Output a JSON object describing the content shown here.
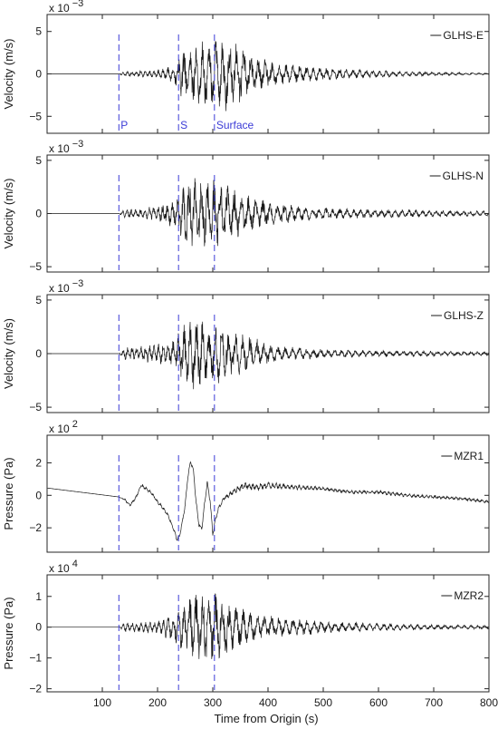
{
  "figure": {
    "xlabel": "Time from Origin (s)"
  },
  "chart_data": [
    {
      "type": "line",
      "ylabel": "Velocity (m/s)",
      "exponent_base": "x 10",
      "exponent_power": "−3",
      "legend": "GLHS-E",
      "xlim": [
        0,
        800
      ],
      "ylim": [
        -7,
        7
      ],
      "xticks": [
        100,
        200,
        300,
        400,
        500,
        600,
        700,
        800
      ],
      "yticks": [
        -5,
        0,
        5
      ],
      "phase_markers": [
        {
          "label": "P",
          "time": 130
        },
        {
          "label": "S",
          "time": 238
        },
        {
          "label": "Surface",
          "time": 303
        }
      ],
      "signal": {
        "noise_start": 0,
        "envelope": [
          [
            0,
            0
          ],
          [
            130,
            0
          ],
          [
            140,
            0.3
          ],
          [
            200,
            0.5
          ],
          [
            230,
            1.0
          ],
          [
            240,
            2.6
          ],
          [
            260,
            3.7
          ],
          [
            290,
            4.2
          ],
          [
            330,
            4.5
          ],
          [
            350,
            3.6
          ],
          [
            380,
            2.0
          ],
          [
            420,
            1.3
          ],
          [
            480,
            0.9
          ],
          [
            560,
            0.55
          ],
          [
            650,
            0.3
          ],
          [
            800,
            0.1
          ]
        ],
        "period": [
          [
            0,
            8
          ],
          [
            200,
            8
          ],
          [
            260,
            11
          ],
          [
            350,
            13
          ],
          [
            500,
            12
          ],
          [
            800,
            12
          ]
        ]
      }
    },
    {
      "type": "line",
      "ylabel": "Velocity (m/s)",
      "exponent_base": "x 10",
      "exponent_power": "−3",
      "legend": "GLHS-N",
      "xlim": [
        0,
        800
      ],
      "ylim": [
        -5.5,
        5.5
      ],
      "xticks": [
        100,
        200,
        300,
        400,
        500,
        600,
        700,
        800
      ],
      "yticks": [
        -5,
        0,
        5
      ],
      "phase_markers": [
        {
          "label": "",
          "time": 130
        },
        {
          "label": "",
          "time": 238
        },
        {
          "label": "",
          "time": 303
        }
      ],
      "signal": {
        "noise_start": 0,
        "envelope": [
          [
            0,
            0
          ],
          [
            130,
            0
          ],
          [
            140,
            0.4
          ],
          [
            200,
            0.7
          ],
          [
            230,
            1.4
          ],
          [
            250,
            2.8
          ],
          [
            270,
            3.8
          ],
          [
            300,
            3.4
          ],
          [
            330,
            2.6
          ],
          [
            360,
            1.9
          ],
          [
            400,
            1.2
          ],
          [
            460,
            0.7
          ],
          [
            560,
            0.45
          ],
          [
            800,
            0.25
          ]
        ],
        "period": [
          [
            0,
            8
          ],
          [
            200,
            8
          ],
          [
            260,
            11
          ],
          [
            350,
            13
          ],
          [
            800,
            12
          ]
        ]
      }
    },
    {
      "type": "line",
      "ylabel": "Velocity (m/s)",
      "exponent_base": "x 10",
      "exponent_power": "−3",
      "legend": "GLHS-Z",
      "xlim": [
        0,
        800
      ],
      "ylim": [
        -5.5,
        5.5
      ],
      "xticks": [
        100,
        200,
        300,
        400,
        500,
        600,
        700,
        800
      ],
      "yticks": [
        -5,
        0,
        5
      ],
      "phase_markers": [
        {
          "label": "",
          "time": 130
        },
        {
          "label": "",
          "time": 238
        },
        {
          "label": "",
          "time": 303
        }
      ],
      "signal": {
        "noise_start": 0,
        "envelope": [
          [
            0,
            0
          ],
          [
            130,
            0
          ],
          [
            140,
            0.7
          ],
          [
            200,
            0.9
          ],
          [
            230,
            1.4
          ],
          [
            250,
            2.9
          ],
          [
            270,
            3.5
          ],
          [
            300,
            3.0
          ],
          [
            340,
            2.2
          ],
          [
            380,
            1.4
          ],
          [
            420,
            0.7
          ],
          [
            500,
            0.45
          ],
          [
            600,
            0.3
          ],
          [
            800,
            0.2
          ]
        ],
        "period": [
          [
            0,
            8
          ],
          [
            200,
            8
          ],
          [
            260,
            11
          ],
          [
            350,
            13
          ],
          [
            800,
            12
          ]
        ]
      }
    },
    {
      "type": "line",
      "ylabel": "Pressure (Pa)",
      "exponent_base": "x 10",
      "exponent_power": "2",
      "legend": "MZR1",
      "xlim": [
        0,
        800
      ],
      "ylim": [
        -3.5,
        3.7
      ],
      "xticks": [
        100,
        200,
        300,
        400,
        500,
        600,
        700,
        800
      ],
      "yticks": [
        -2,
        0,
        2
      ],
      "phase_markers": [
        {
          "label": "",
          "time": 130
        },
        {
          "label": "",
          "time": 238
        },
        {
          "label": "",
          "time": 303
        }
      ],
      "series": [
        {
          "x": [
            0,
            130,
            140,
            150,
            160,
            170,
            180,
            190,
            200,
            210,
            220,
            230,
            235,
            240,
            245,
            250,
            255,
            260,
            265,
            270,
            275,
            280,
            285,
            290,
            295,
            300,
            305,
            310,
            320,
            340,
            360,
            380,
            400,
            450,
            500,
            550,
            600,
            650,
            700,
            750,
            800
          ],
          "y": [
            0.45,
            -0.1,
            -0.25,
            -0.6,
            -0.2,
            0.6,
            0.4,
            0.1,
            -0.4,
            -0.8,
            -1.3,
            -2.2,
            -2.7,
            -2.5,
            -1.6,
            -0.6,
            1.2,
            2.1,
            1.5,
            -0.5,
            -1.8,
            -2.1,
            -0.6,
            0.8,
            -0.3,
            -2.4,
            -1.5,
            -0.8,
            -0.2,
            0.3,
            0.6,
            0.5,
            0.6,
            0.5,
            0.4,
            0.2,
            0.2,
            0.0,
            -0.1,
            -0.2,
            -0.4
          ]
        }
      ],
      "signal": {
        "noise_start": 0,
        "envelope": [
          [
            0,
            0
          ],
          [
            130,
            0
          ],
          [
            140,
            0.08
          ],
          [
            300,
            0.15
          ],
          [
            380,
            0.25
          ],
          [
            500,
            0.12
          ],
          [
            800,
            0.1
          ]
        ],
        "period": [
          [
            0,
            6
          ],
          [
            800,
            8
          ]
        ]
      }
    },
    {
      "type": "line",
      "ylabel": "Pressure (Pa)",
      "exponent_base": "x 10",
      "exponent_power": "4",
      "legend": "MZR2",
      "xlim": [
        0,
        800
      ],
      "ylim": [
        -2.1,
        1.7
      ],
      "xticks": [
        100,
        200,
        300,
        400,
        500,
        600,
        700,
        800
      ],
      "yticks": [
        -2,
        -1,
        0,
        1
      ],
      "phase_markers": [
        {
          "label": "",
          "time": 130
        },
        {
          "label": "",
          "time": 238
        },
        {
          "label": "",
          "time": 303
        }
      ],
      "signal": {
        "noise_start": 0,
        "envelope": [
          [
            0,
            0
          ],
          [
            130,
            0
          ],
          [
            140,
            0.15
          ],
          [
            200,
            0.2
          ],
          [
            230,
            0.5
          ],
          [
            250,
            0.9
          ],
          [
            270,
            1.3
          ],
          [
            300,
            1.2
          ],
          [
            340,
            0.8
          ],
          [
            380,
            0.45
          ],
          [
            440,
            0.3
          ],
          [
            520,
            0.18
          ],
          [
            650,
            0.1
          ],
          [
            800,
            0.06
          ]
        ],
        "period": [
          [
            0,
            8
          ],
          [
            200,
            8
          ],
          [
            260,
            11
          ],
          [
            350,
            13
          ],
          [
            800,
            12
          ]
        ]
      }
    }
  ],
  "colors": {
    "trace": "#1a1a1a",
    "marker": "#3b3bd6",
    "axis": "#262626"
  }
}
